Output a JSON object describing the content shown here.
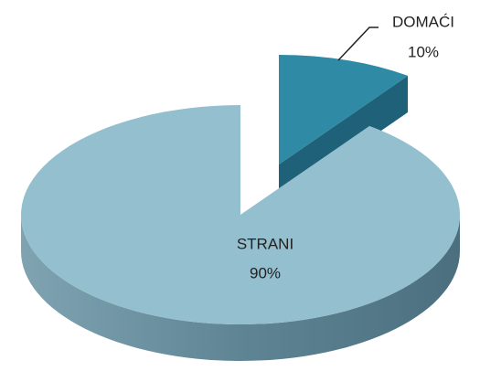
{
  "chart_data": {
    "type": "pie3d",
    "categories": [
      "DOMAĆI",
      "STRANI"
    ],
    "values": [
      10,
      90
    ],
    "value_labels": [
      "10%",
      "90%"
    ],
    "colors": [
      "#2f8aa6",
      "#94bfcf"
    ]
  }
}
